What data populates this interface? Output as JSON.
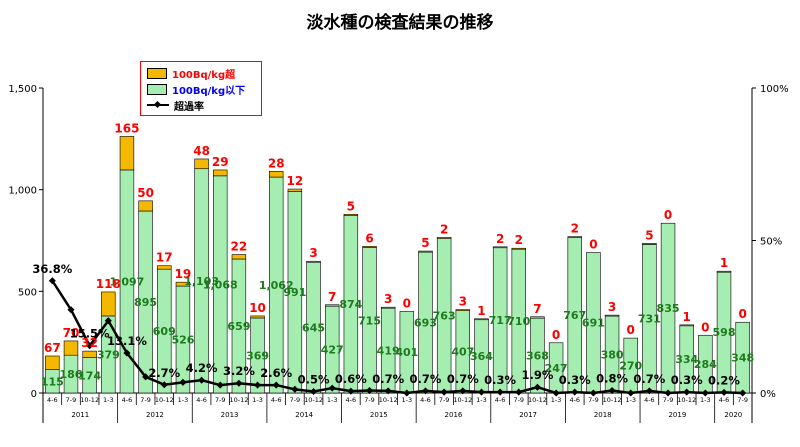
{
  "title": "淡水種の検査結果の推移",
  "legend": {
    "over": "100Bq/kg超",
    "under": "100Bq/kg以下",
    "rate": "超過率"
  },
  "colors": {
    "over": "#f5b800",
    "under": "#a6edb1",
    "over_label": "#ff0000",
    "under_label": "#1d7a1d",
    "rate_line": "#000000",
    "legend_under_text": "#0000ff"
  },
  "chart_data": {
    "type": "bar",
    "stacked": true,
    "categories": [
      "4-6",
      "7-9",
      "10-12",
      "1-3",
      "4-6",
      "7-9",
      "10-12",
      "1-3",
      "4-6",
      "7-9",
      "10-12",
      "1-3",
      "4-6",
      "7-9",
      "10-12",
      "1-3",
      "4-6",
      "7-9",
      "10-12",
      "1-3",
      "4-6",
      "7-9",
      "10-12",
      "1-3",
      "4-6",
      "7-9",
      "10-12",
      "1-3",
      "4-6",
      "7-9",
      "10-12",
      "1-3",
      "4-6",
      "7-9",
      "10-12",
      "1-3",
      "4-6",
      "7-9"
    ],
    "years": [
      {
        "label": "2011",
        "start": 0,
        "count": 4
      },
      {
        "label": "2012",
        "start": 4,
        "count": 4
      },
      {
        "label": "2013",
        "start": 8,
        "count": 4
      },
      {
        "label": "2014",
        "start": 12,
        "count": 4
      },
      {
        "label": "2015",
        "start": 16,
        "count": 4
      },
      {
        "label": "2016",
        "start": 20,
        "count": 4
      },
      {
        "label": "2017",
        "start": 24,
        "count": 4
      },
      {
        "label": "2018",
        "start": 28,
        "count": 4
      },
      {
        "label": "2019",
        "start": 32,
        "count": 4
      },
      {
        "label": "2020",
        "start": 36,
        "count": 2
      }
    ],
    "series": [
      {
        "name": "100Bq/kg以下",
        "values": [
          115,
          186,
          174,
          379,
          1097,
          895,
          609,
          526,
          1103,
          1068,
          659,
          369,
          1062,
          991,
          645,
          427,
          874,
          715,
          419,
          401,
          693,
          763,
          407,
          364,
          717,
          710,
          368,
          247,
          767,
          691,
          380,
          270,
          731,
          835,
          334,
          284,
          598,
          348
        ]
      },
      {
        "name": "100Bq/kg超",
        "values": [
          67,
          70,
          32,
          118,
          165,
          50,
          17,
          19,
          48,
          29,
          22,
          10,
          28,
          12,
          3,
          7,
          5,
          6,
          3,
          0,
          5,
          2,
          3,
          1,
          2,
          2,
          7,
          0,
          2,
          0,
          3,
          0,
          5,
          0,
          1,
          0,
          1,
          0
        ]
      },
      {
        "name": "超過率",
        "values": [
          36.8,
          27.3,
          15.5,
          23.7,
          13.1,
          5.3,
          2.7,
          3.5,
          4.2,
          2.6,
          3.2,
          2.6,
          2.6,
          1.2,
          0.5,
          1.6,
          0.6,
          0.8,
          0.7,
          0.0,
          0.7,
          0.3,
          0.7,
          0.3,
          0.3,
          0.3,
          1.9,
          0.0,
          0.3,
          0.0,
          0.8,
          0.0,
          0.7,
          0.0,
          0.3,
          0.0,
          0.2,
          0.0
        ]
      }
    ],
    "rate_labels": [
      {
        "index": 0,
        "text": "36.8%"
      },
      {
        "index": 2,
        "text": "15.5%"
      },
      {
        "index": 4,
        "text": "13.1%"
      },
      {
        "index": 6,
        "text": "2.7%"
      },
      {
        "index": 8,
        "text": "4.2%"
      },
      {
        "index": 10,
        "text": "3.2%"
      },
      {
        "index": 12,
        "text": "2.6%"
      },
      {
        "index": 14,
        "text": "0.5%"
      },
      {
        "index": 16,
        "text": "0.6%"
      },
      {
        "index": 18,
        "text": "0.7%"
      },
      {
        "index": 20,
        "text": "0.7%"
      },
      {
        "index": 22,
        "text": "0.7%"
      },
      {
        "index": 24,
        "text": "0.3%"
      },
      {
        "index": 26,
        "text": "1.9%"
      },
      {
        "index": 28,
        "text": "0.3%"
      },
      {
        "index": 30,
        "text": "0.8%"
      },
      {
        "index": 32,
        "text": "0.7%"
      },
      {
        "index": 34,
        "text": "0.3%"
      },
      {
        "index": 36,
        "text": "0.2%"
      }
    ],
    "ylim": [
      0,
      1500
    ],
    "yticks": [
      "0",
      "500",
      "1,000",
      "1,500"
    ],
    "y2lim": [
      0,
      100
    ],
    "y2ticks": [
      "0%",
      "50%",
      "100%"
    ],
    "legend_position": "top-left"
  }
}
